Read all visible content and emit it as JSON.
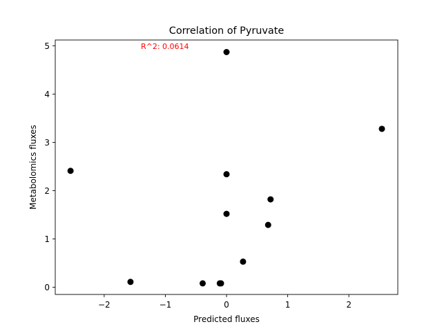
{
  "chart_data": {
    "type": "scatter",
    "title": "Correlation of Pyruvate",
    "xlabel": "Predicted fluxes",
    "ylabel": "Metabolomics fluxes",
    "xlim": [
      -2.8,
      2.8
    ],
    "ylim": [
      -0.15,
      5.12
    ],
    "xticks": [
      -2,
      -1,
      0,
      1,
      2
    ],
    "xtick_labels": [
      "−2",
      "−1",
      "0",
      "1",
      "2"
    ],
    "yticks": [
      0,
      1,
      2,
      3,
      4,
      5
    ],
    "ytick_labels": [
      "0",
      "1",
      "2",
      "3",
      "4",
      "5"
    ],
    "grid": false,
    "marker_color": "#000000",
    "annotation": {
      "text": "R^2: 0.0614",
      "color": "#ff0000",
      "x": -1.4,
      "y": 4.99
    },
    "points": [
      {
        "x": -2.55,
        "y": 2.41
      },
      {
        "x": -1.57,
        "y": 0.11
      },
      {
        "x": -0.39,
        "y": 0.08
      },
      {
        "x": -0.11,
        "y": 0.08
      },
      {
        "x": -0.09,
        "y": 0.08
      },
      {
        "x": 0.0,
        "y": 4.87
      },
      {
        "x": 0.0,
        "y": 2.34
      },
      {
        "x": 0.0,
        "y": 1.52
      },
      {
        "x": 0.27,
        "y": 0.53
      },
      {
        "x": 0.68,
        "y": 1.29
      },
      {
        "x": 0.72,
        "y": 1.82
      },
      {
        "x": 2.54,
        "y": 3.28
      }
    ]
  }
}
